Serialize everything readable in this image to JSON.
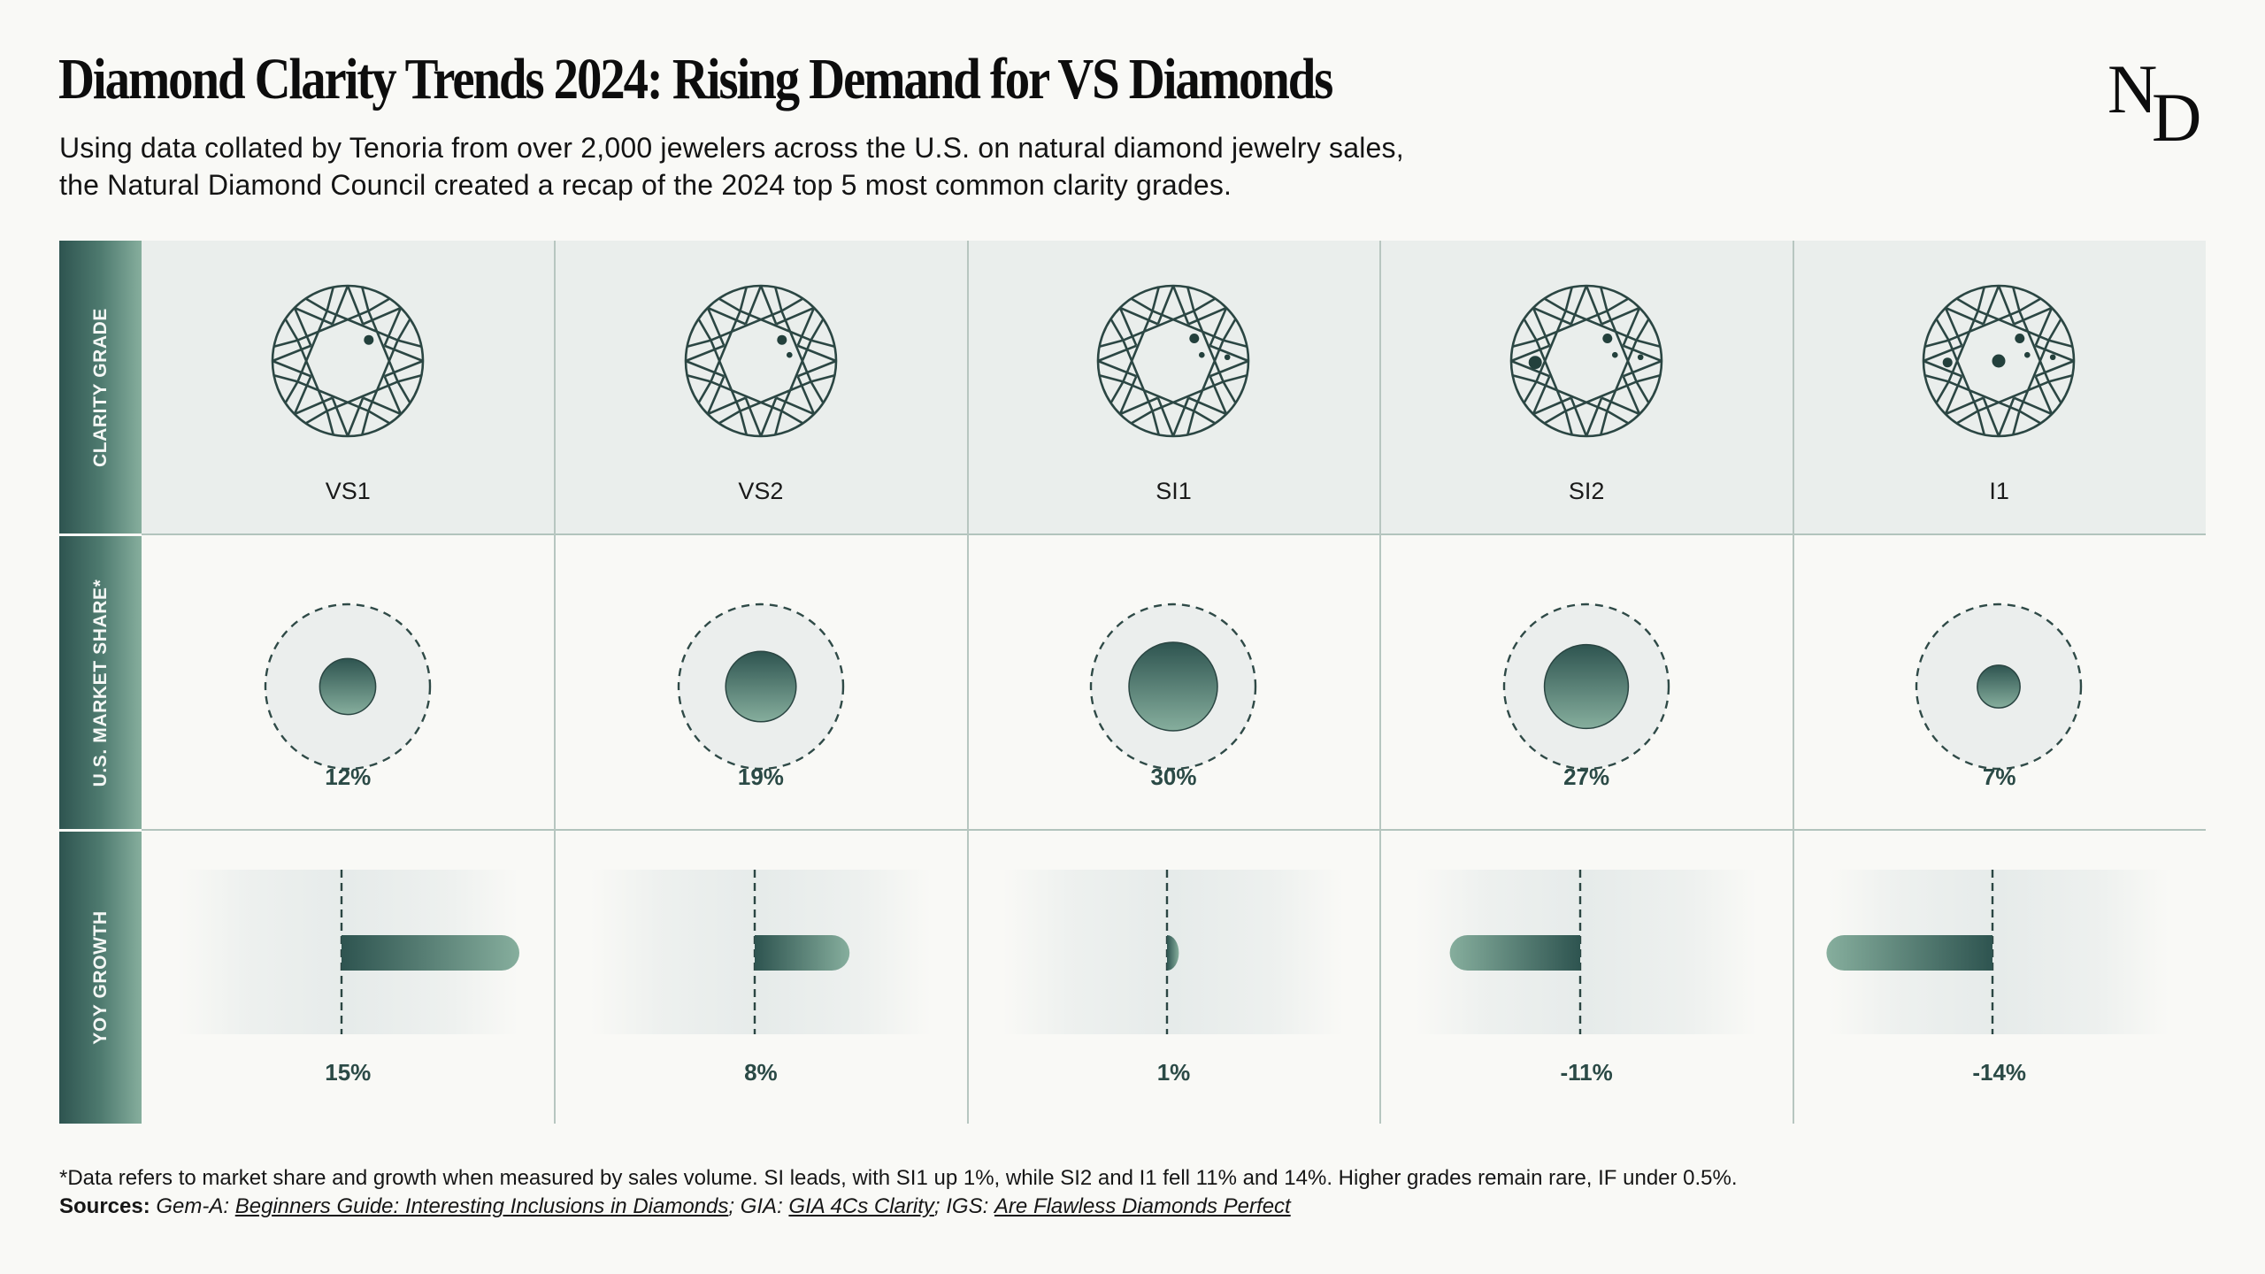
{
  "header": {
    "title": "Diamond Clarity Trends 2024: Rising Demand for VS Diamonds",
    "subtitle_line1": "Using data collated by Tenoria from over 2,000 jewelers across the U.S. on natural diamond jewelry sales,",
    "subtitle_line2": "the Natural Diamond Council created a recap of the 2024 top 5 most common clarity grades.",
    "logo_n": "N",
    "logo_d": "D"
  },
  "row_labels": {
    "clarity": "CLARITY GRADE",
    "share": "U.S. MARKET SHARE*",
    "growth": "YOY GROWTH"
  },
  "colors": {
    "dark": "#2e5450",
    "light": "#86ae9d",
    "ink": "#2b4a46"
  },
  "chart_data": {
    "type": "table",
    "title": "Diamond Clarity Trends 2024: Rising Demand for VS Diamonds",
    "categories": [
      "VS1",
      "VS2",
      "SI1",
      "SI2",
      "I1"
    ],
    "series": [
      {
        "name": "U.S. Market Share (%)",
        "values": [
          12,
          19,
          30,
          27,
          7
        ],
        "labels": [
          "12%",
          "19%",
          "30%",
          "27%",
          "7%"
        ]
      },
      {
        "name": "YoY Growth (%)",
        "values": [
          15,
          8,
          1,
          -11,
          -14
        ],
        "labels": [
          "15%",
          "8%",
          "1%",
          "-11%",
          "-14%"
        ]
      }
    ],
    "inclusions": [
      [
        [
          0.28,
          -0.28,
          "m"
        ]
      ],
      [
        [
          0.28,
          -0.28,
          "m"
        ],
        [
          0.38,
          -0.08,
          "s"
        ]
      ],
      [
        [
          0.28,
          -0.3,
          "m"
        ],
        [
          0.38,
          -0.08,
          "s"
        ],
        [
          0.72,
          -0.05,
          "s"
        ]
      ],
      [
        [
          0.28,
          -0.3,
          "m"
        ],
        [
          0.38,
          -0.08,
          "s"
        ],
        [
          0.72,
          -0.05,
          "s"
        ],
        [
          -0.68,
          0.02,
          "l"
        ]
      ],
      [
        [
          0.28,
          -0.3,
          "m"
        ],
        [
          0.38,
          -0.08,
          "s"
        ],
        [
          0.72,
          -0.05,
          "s"
        ],
        [
          -0.68,
          0.02,
          "m"
        ],
        [
          0.0,
          0.0,
          "l"
        ]
      ]
    ]
  },
  "footer": {
    "note": "*Data refers to market share and growth when measured by sales volume. SI leads, with SI1 up 1%, while SI2 and I1 fell 11% and 14%. Higher grades remain rare, IF under 0.5%.",
    "sources_label": "Sources:",
    "src1_org": "Gem-A:",
    "src1_link": "Beginners Guide: Interesting Inclusions in Diamonds",
    "sep1": ";",
    "src2_org": "GIA:",
    "src2_link": "GIA 4Cs Clarity",
    "sep2": ";",
    "src3_org": "IGS:",
    "src3_link": "Are Flawless Diamonds Perfect"
  }
}
